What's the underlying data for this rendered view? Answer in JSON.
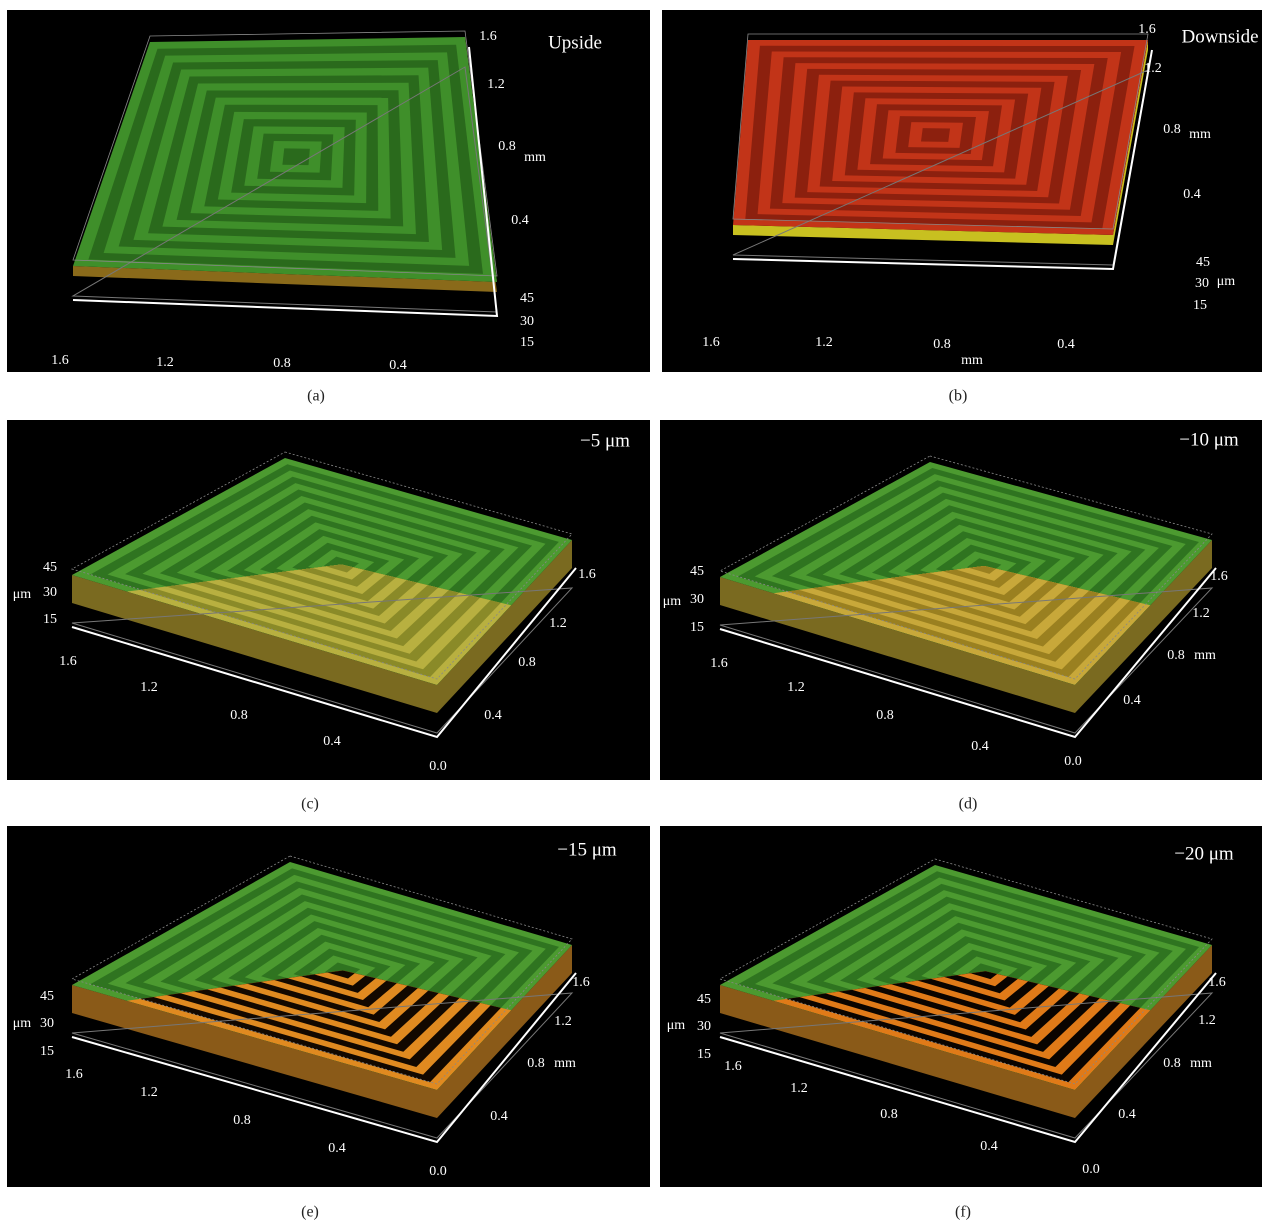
{
  "panels": [
    {
      "caption": "(a)",
      "texts": [
        "Upside",
        "1.6",
        "1.2",
        "0.8",
        "mm",
        "0.4",
        "45",
        "30",
        "15",
        "1.6",
        "1.2",
        "0.8",
        "0.4"
      ]
    },
    {
      "caption": "(b)",
      "texts": [
        "Downside",
        "1.6",
        "1.2",
        "0.8",
        "mm",
        "0.4",
        "45",
        "30",
        "μm",
        "15",
        "1.6",
        "1.2",
        "0.8",
        "0.4",
        "mm"
      ]
    },
    {
      "caption": "(c)",
      "texts": [
        "−5 μm",
        "45",
        "μm",
        "30",
        "15",
        "1.6",
        "1.2",
        "0.8",
        "0.4",
        "0.0",
        "1.6",
        "1.2",
        "0.8",
        "0.4"
      ]
    },
    {
      "caption": "(d)",
      "texts": [
        "−10 μm",
        "45",
        "μm",
        "30",
        "15",
        "1.6",
        "1.2",
        "0.8",
        "0.4",
        "0.0",
        "1.6",
        "1.2",
        "0.8",
        "mm",
        "0.4"
      ]
    },
    {
      "caption": "(e)",
      "texts": [
        "−15 μm",
        "45",
        "μm",
        "30",
        "15",
        "1.6",
        "1.2",
        "0.8",
        "0.4",
        "0.0",
        "1.6",
        "1.2",
        "0.8",
        "mm",
        "0.4"
      ]
    },
    {
      "caption": "(f)",
      "texts": [
        "−20 μm",
        "45",
        "μm",
        "30",
        "15",
        "1.6",
        "1.2",
        "0.8",
        "0.4",
        "0.0",
        "1.6",
        "1.2",
        "0.8",
        "mm",
        "0.4"
      ]
    }
  ]
}
